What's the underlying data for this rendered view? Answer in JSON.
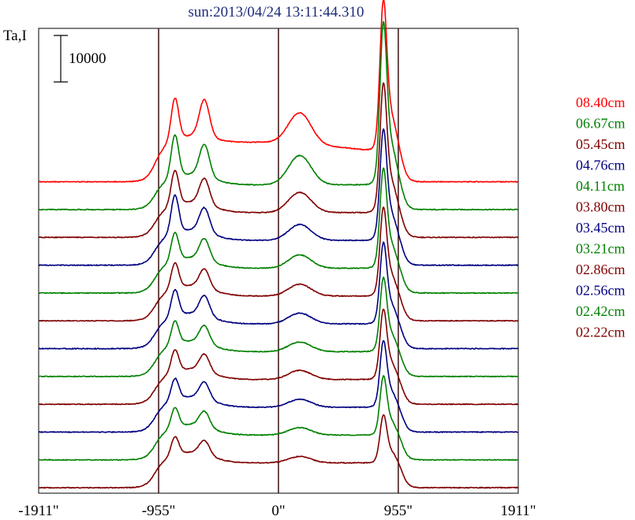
{
  "chart_data": {
    "type": "line",
    "title": "sun:2013/04/24 13:11:44.310",
    "ylabel": "Ta,I",
    "scale_bar_label": "10000",
    "scale_bar_value": 10000,
    "x_ticks": [
      "-1911\"",
      "-955\"",
      "0\"",
      "955\"",
      "1911\""
    ],
    "x_tick_values": [
      -1911,
      -955,
      0,
      955,
      1911
    ],
    "vertical_lines_at": [
      -955,
      0,
      955
    ],
    "xlim": [
      -1911,
      1911
    ],
    "grid": false,
    "legend_position": "right",
    "series": [
      {
        "name": "08.40cm",
        "color": "#ff0000",
        "offset": 11,
        "peak": 2.05,
        "base_level": 0.0,
        "left_peak_a": 0.95,
        "left_peak_b": 0.83,
        "center_bump": 0.58
      },
      {
        "name": "06.67cm",
        "color": "#008000",
        "offset": 10,
        "peak": 2.2,
        "base_level": 0.0,
        "left_peak_a": 0.95,
        "left_peak_b": 0.72,
        "center_bump": 0.55
      },
      {
        "name": "05.45cm",
        "color": "#800000",
        "offset": 9,
        "peak": 1.75,
        "base_level": 0.0,
        "left_peak_a": 0.78,
        "left_peak_b": 0.58,
        "center_bump": 0.38
      },
      {
        "name": "04.76cm",
        "color": "#000080",
        "offset": 8,
        "peak": 1.5,
        "base_level": 0.0,
        "left_peak_a": 0.85,
        "left_peak_b": 0.55,
        "center_bump": 0.3
      },
      {
        "name": "04.11cm",
        "color": "#008000",
        "offset": 7,
        "peak": 1.35,
        "base_level": 0.0,
        "left_peak_a": 0.63,
        "left_peak_b": 0.48,
        "center_bump": 0.25
      },
      {
        "name": "03.80cm",
        "color": "#800000",
        "offset": 6,
        "peak": 1.2,
        "base_level": 0.0,
        "left_peak_a": 0.58,
        "left_peak_b": 0.42,
        "center_bump": 0.22
      },
      {
        "name": "03.45cm",
        "color": "#000080",
        "offset": 5,
        "peak": 1.1,
        "base_level": 0.0,
        "left_peak_a": 0.6,
        "left_peak_b": 0.45,
        "center_bump": 0.2
      },
      {
        "name": "03.21cm",
        "color": "#008000",
        "offset": 4,
        "peak": 1.0,
        "base_level": 0.0,
        "left_peak_a": 0.52,
        "left_peak_b": 0.4,
        "center_bump": 0.18
      },
      {
        "name": "02.86cm",
        "color": "#800000",
        "offset": 3,
        "peak": 0.95,
        "base_level": 0.0,
        "left_peak_a": 0.5,
        "left_peak_b": 0.38,
        "center_bump": 0.17
      },
      {
        "name": "02.56cm",
        "color": "#000080",
        "offset": 2,
        "peak": 0.9,
        "base_level": 0.0,
        "left_peak_a": 0.48,
        "left_peak_b": 0.38,
        "center_bump": 0.15
      },
      {
        "name": "02.42cm",
        "color": "#008000",
        "offset": 1,
        "peak": 0.8,
        "base_level": 0.0,
        "left_peak_a": 0.45,
        "left_peak_b": 0.35,
        "center_bump": 0.14
      },
      {
        "name": "02.22cm",
        "color": "#800000",
        "offset": 0,
        "peak": 0.65,
        "base_level": 0.0,
        "left_peak_a": 0.42,
        "left_peak_b": 0.32,
        "center_bump": 0.12
      }
    ]
  }
}
